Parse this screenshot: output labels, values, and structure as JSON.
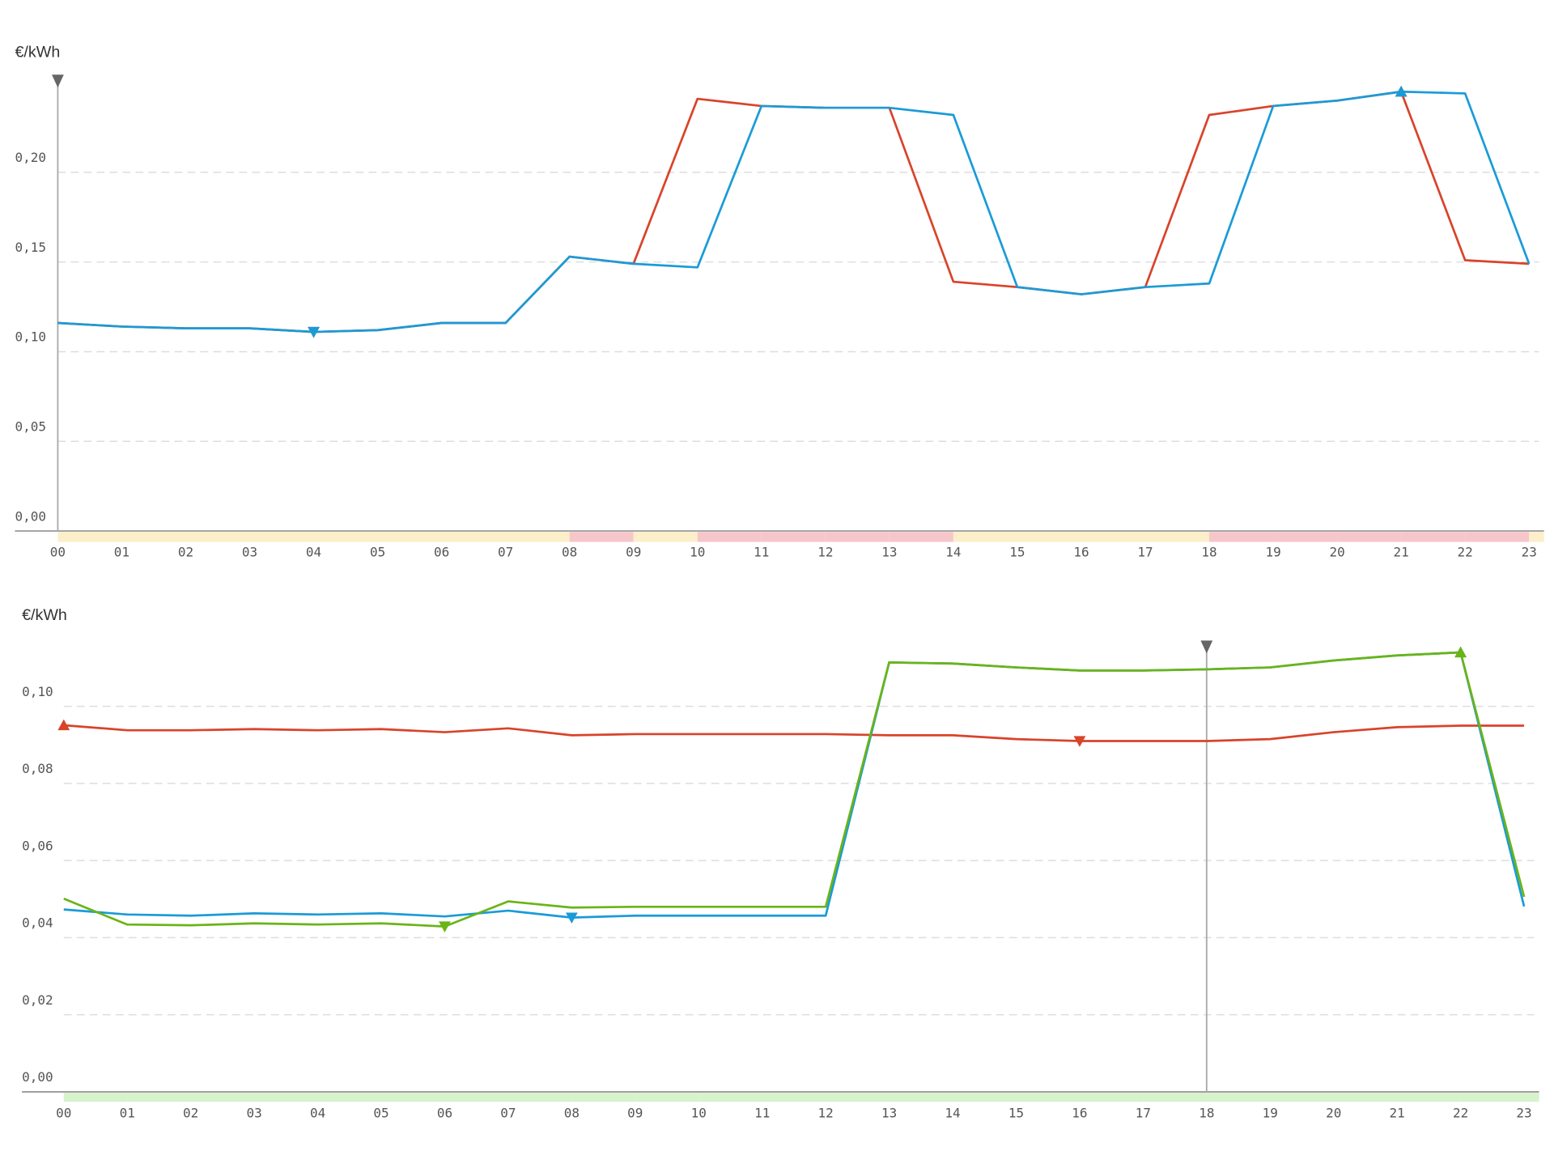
{
  "chart_data": [
    {
      "type": "line",
      "y_label": "€/kWh",
      "categories": [
        "00",
        "01",
        "02",
        "03",
        "04",
        "05",
        "06",
        "07",
        "08",
        "09",
        "10",
        "11",
        "12",
        "13",
        "14",
        "15",
        "16",
        "17",
        "18",
        "19",
        "20",
        "21",
        "22",
        "23"
      ],
      "series": [
        {
          "color": "#d9432a",
          "values": [
            0.116,
            0.114,
            0.113,
            0.113,
            0.111,
            0.112,
            0.116,
            0.116,
            0.153,
            0.149,
            0.241,
            0.237,
            0.236,
            0.236,
            0.139,
            0.136,
            0.132,
            0.136,
            0.232,
            0.237,
            0.24,
            0.245,
            0.151,
            0.149
          ]
        },
        {
          "color": "#1a9bd7",
          "values": [
            0.116,
            0.114,
            0.113,
            0.113,
            0.111,
            0.112,
            0.116,
            0.116,
            0.153,
            0.149,
            0.147,
            0.237,
            0.236,
            0.236,
            0.232,
            0.136,
            0.132,
            0.136,
            0.138,
            0.237,
            0.24,
            0.245,
            0.244,
            0.149
          ]
        }
      ],
      "ylim": [
        0,
        0.25
      ],
      "yticks": [
        {
          "value": 0,
          "label": "0,00"
        },
        {
          "value": 0.05,
          "label": "0,05"
        },
        {
          "value": 0.1,
          "label": "0,10"
        },
        {
          "value": 0.15,
          "label": "0,15"
        },
        {
          "value": 0.2,
          "label": "0,20"
        }
      ],
      "grid": true,
      "now_index": 0,
      "band_colors": [
        "#fcefc9",
        "#fcefc9",
        "#fcefc9",
        "#fcefc9",
        "#fcefc9",
        "#fcefc9",
        "#fcefc9",
        "#fcefc9",
        "#f7c6ca",
        "#fcefc9",
        "#f7c6ca",
        "#f7c6ca",
        "#f7c6ca",
        "#f7c6ca",
        "#fcefc9",
        "#fcefc9",
        "#fcefc9",
        "#fcefc9",
        "#f7c6ca",
        "#f7c6ca",
        "#f7c6ca",
        "#f7c6ca",
        "#f7c6ca",
        "#fcefc9"
      ]
    },
    {
      "type": "line",
      "y_label": "€/kWh",
      "categories": [
        "00",
        "01",
        "02",
        "03",
        "04",
        "05",
        "06",
        "07",
        "08",
        "09",
        "10",
        "11",
        "12",
        "13",
        "14",
        "15",
        "16",
        "17",
        "18",
        "19",
        "20",
        "21",
        "22",
        "23"
      ],
      "series": [
        {
          "color": "#d9432a",
          "values": [
            0.0951,
            0.0938,
            0.0938,
            0.0941,
            0.0938,
            0.0941,
            0.0933,
            0.0943,
            0.0925,
            0.0928,
            0.0928,
            0.0928,
            0.0928,
            0.0925,
            0.0925,
            0.0915,
            0.091,
            0.091,
            0.091,
            0.0915,
            0.0933,
            0.0946,
            0.095,
            0.095
          ]
        },
        {
          "color": "#1a9bd7",
          "values": [
            0.0473,
            0.046,
            0.0457,
            0.0463,
            0.046,
            0.0463,
            0.0455,
            0.047,
            0.0452,
            0.0457,
            0.0457,
            0.0457,
            0.0457,
            0.1114,
            0.1111,
            0.1101,
            0.1093,
            0.1093,
            0.1096,
            0.1101,
            0.1119,
            0.1132,
            0.114,
            0.0481
          ]
        },
        {
          "color": "#6ab417",
          "values": [
            0.0501,
            0.0434,
            0.0432,
            0.0437,
            0.0434,
            0.0437,
            0.0429,
            0.0494,
            0.0478,
            0.048,
            0.048,
            0.048,
            0.048,
            0.1114,
            0.1111,
            0.1101,
            0.1093,
            0.1093,
            0.1096,
            0.1101,
            0.1119,
            0.1132,
            0.114,
            0.0506
          ]
        }
      ],
      "ylim": [
        0,
        0.115
      ],
      "yticks": [
        {
          "value": 0,
          "label": "0,00"
        },
        {
          "value": 0.02,
          "label": "0,02"
        },
        {
          "value": 0.04,
          "label": "0,04"
        },
        {
          "value": 0.06,
          "label": "0,06"
        },
        {
          "value": 0.08,
          "label": "0,08"
        },
        {
          "value": 0.1,
          "label": "0,10"
        }
      ],
      "grid": true,
      "now_index": 18,
      "band_colors": [
        "#d6f3cc",
        "#d6f3cc",
        "#d6f3cc",
        "#d6f3cc",
        "#d6f3cc",
        "#d6f3cc",
        "#d6f3cc",
        "#d6f3cc",
        "#d6f3cc",
        "#d6f3cc",
        "#d6f3cc",
        "#d6f3cc",
        "#d6f3cc",
        "#d6f3cc",
        "#d6f3cc",
        "#d6f3cc",
        "#d6f3cc",
        "#d6f3cc",
        "#d6f3cc",
        "#d6f3cc",
        "#d6f3cc",
        "#d6f3cc",
        "#d6f3cc",
        "#d6f3cc"
      ]
    }
  ]
}
